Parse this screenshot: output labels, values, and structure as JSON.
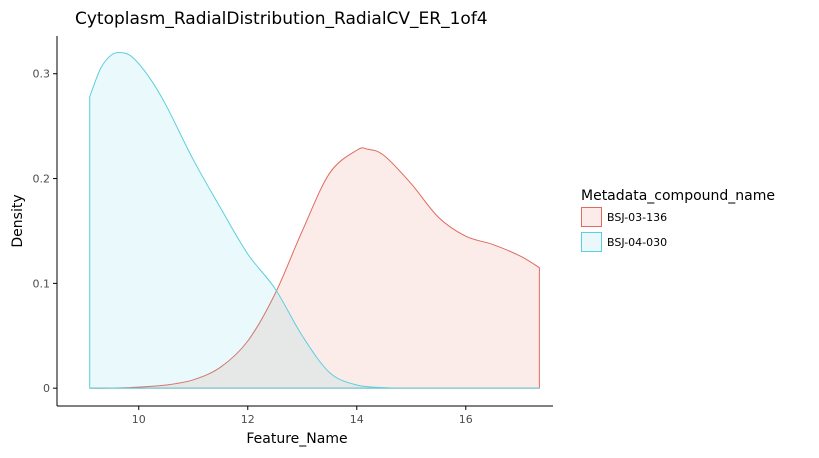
{
  "chart_data": {
    "type": "area",
    "title": "Cytoplasm_RadialDistribution_RadialCV_ER_1of4",
    "xlabel": "Feature_Name",
    "ylabel": "Density",
    "xlim": [
      8.5,
      17.6
    ],
    "ylim": [
      -0.017,
      0.336
    ],
    "x_ticks": [
      10,
      12,
      14,
      16
    ],
    "x_tick_labels": [
      "10",
      "12",
      "14",
      "16"
    ],
    "y_ticks": [
      0,
      0.1,
      0.2,
      0.3
    ],
    "y_tick_labels": [
      "0",
      "0.1",
      "0.2",
      "0.3"
    ],
    "grid": false,
    "legend": {
      "title": "Metadata_compound_name",
      "position": "right"
    },
    "series": [
      {
        "name": "BSJ-03-136",
        "color": "#e16a5f",
        "fill": "#fbeceb",
        "x": [
          9.1,
          9.5,
          10,
          10.5,
          11,
          11.5,
          12,
          12.5,
          13,
          13.5,
          14,
          14.2,
          14.5,
          15,
          15.5,
          16,
          16.5,
          17,
          17.35
        ],
        "y": [
          0,
          0,
          0.001,
          0.003,
          0.008,
          0.02,
          0.045,
          0.09,
          0.15,
          0.205,
          0.227,
          0.228,
          0.222,
          0.195,
          0.163,
          0.145,
          0.137,
          0.126,
          0.115
        ]
      },
      {
        "name": "BSJ-04-030",
        "color": "#5bcfdf",
        "fill": "#eaf8fa",
        "x": [
          9.1,
          9.3,
          9.5,
          9.7,
          9.9,
          10.2,
          10.5,
          11,
          11.5,
          12,
          12.5,
          13,
          13.5,
          14,
          14.5,
          15,
          16,
          17.35
        ],
        "y": [
          0.278,
          0.305,
          0.318,
          0.32,
          0.315,
          0.296,
          0.27,
          0.218,
          0.172,
          0.128,
          0.095,
          0.05,
          0.015,
          0.003,
          0.0005,
          0,
          0,
          0
        ]
      }
    ]
  }
}
